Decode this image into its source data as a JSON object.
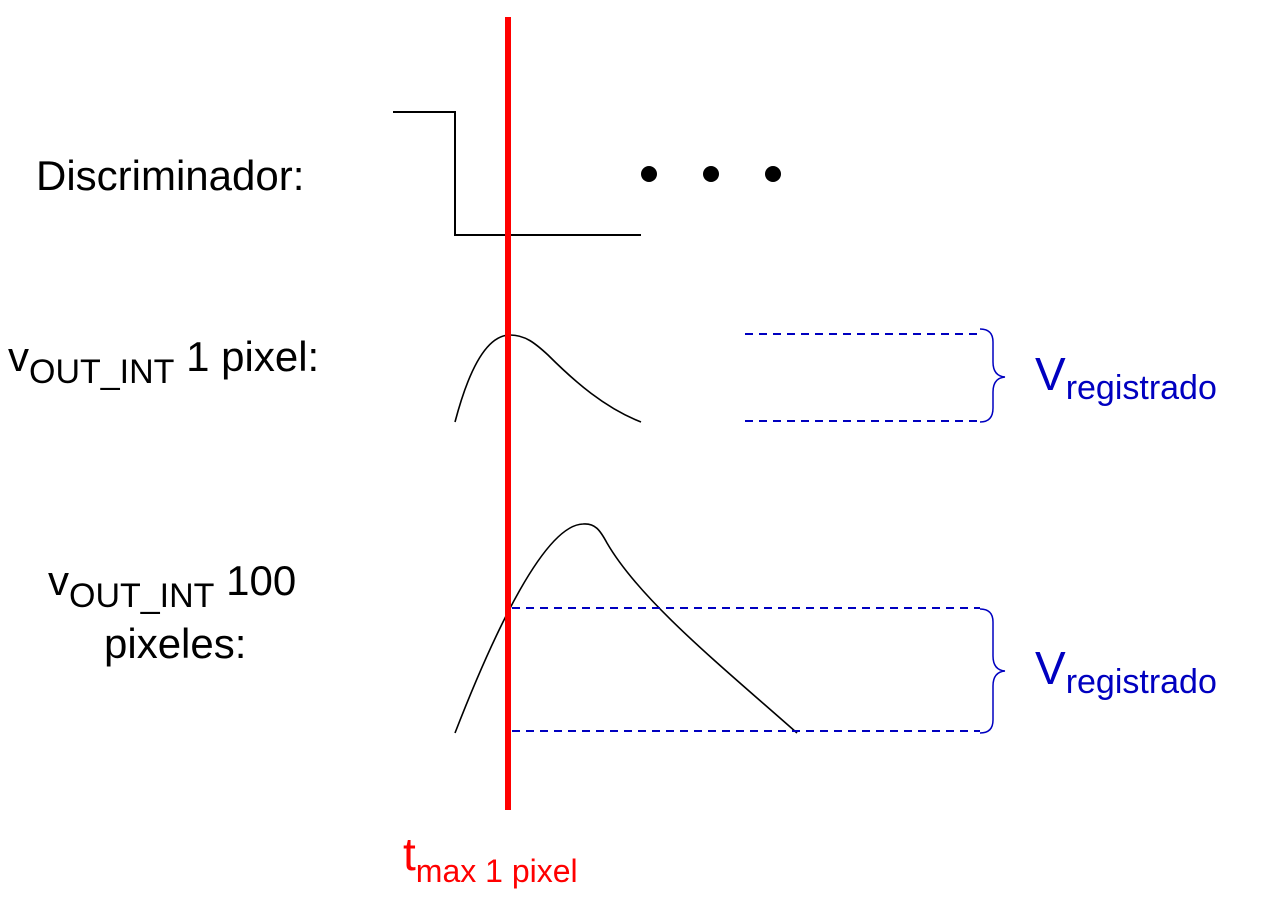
{
  "labels": {
    "discriminator": "Discriminador:",
    "row1_main": "v",
    "row1_sub": "OUT_INT",
    "row1_rest": " 1 pixel:",
    "row2_main": "v",
    "row2_sub": "OUT_INT",
    "row2_rest": " 100",
    "row2_line2": "pixeles:",
    "vreg1_main": "V",
    "vreg1_sub": "registrado",
    "vreg2_main": "V",
    "vreg2_sub": "registrado",
    "tmax_main": "t",
    "tmax_sub": "max 1 pixel"
  },
  "colors": {
    "signal": "#000000",
    "marker": "#ff0000",
    "measurement": "#0000c0"
  }
}
